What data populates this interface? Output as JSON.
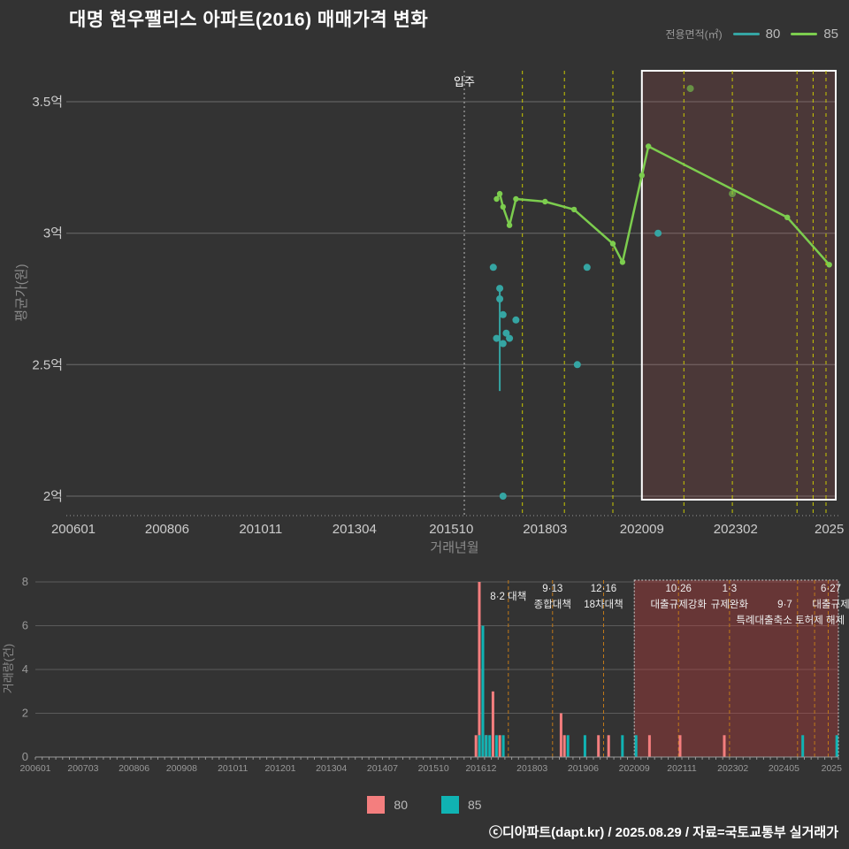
{
  "title": "대명 현우팰리스 아파트(2016) 매매가격 변화",
  "legend_top": {
    "label": "전용면적(㎡)",
    "items": [
      {
        "name": "80",
        "color": "#35a5a3"
      },
      {
        "name": "85",
        "color": "#7ccd4e"
      }
    ]
  },
  "legend_bottom": {
    "items": [
      {
        "name": "80",
        "color": "#f47e7e"
      },
      {
        "name": "85",
        "color": "#10b3b3"
      }
    ]
  },
  "footer": "ⓒ디아파트(dapt.kr) / 2025.08.29 / 자료=국토교통부 실거래가",
  "colors": {
    "background": "#333333",
    "price_80": "#35a5a3",
    "price_85": "#7ccd4e",
    "volume_80": "#f47e7e",
    "volume_85": "#10b3b3",
    "policy_line_top": "#c9c900",
    "policy_line_bottom": "#c07818",
    "highlight_border": "#ffffff"
  },
  "chart_data": [
    {
      "type": "line",
      "title": "매매가격 변화",
      "xlabel": "거래년월",
      "ylabel": "평균가(원)",
      "x_domain": [
        200601,
        202509
      ],
      "y_domain": [
        1.93,
        3.62
      ],
      "grid": true,
      "yticks": [
        {
          "v": 2.0,
          "label": "2억"
        },
        {
          "v": 2.5,
          "label": "2.5억"
        },
        {
          "v": 3.0,
          "label": "3억"
        },
        {
          "v": 3.5,
          "label": "3.5억"
        }
      ],
      "xticks": [
        {
          "m": 200601,
          "label": "200601"
        },
        {
          "m": 200806,
          "label": "200806"
        },
        {
          "m": 201011,
          "label": "201011"
        },
        {
          "m": 201304,
          "label": "201304"
        },
        {
          "m": 201510,
          "label": "201510"
        },
        {
          "m": 201803,
          "label": "201803"
        },
        {
          "m": 202009,
          "label": "202009"
        },
        {
          "m": 202302,
          "label": "202302"
        },
        {
          "m": 202507,
          "label": "2025"
        }
      ],
      "move_in": {
        "m": 201602,
        "label": "입주"
      },
      "highlight": {
        "from": 202009,
        "to": 202509
      },
      "series": [
        {
          "name": "80",
          "mode": "scatter",
          "color": "#35a5a3",
          "unit": "억",
          "points": [
            [
              201611,
              2.87
            ],
            [
              201612,
              2.6
            ],
            [
              201701,
              2.79
            ],
            [
              201701,
              2.75
            ],
            [
              201702,
              2.69
            ],
            [
              201702,
              2.58
            ],
            [
              201702,
              2.0
            ],
            [
              201703,
              2.62
            ],
            [
              201704,
              2.6
            ],
            [
              201706,
              2.67
            ],
            [
              201901,
              2.5
            ],
            [
              201904,
              2.87
            ],
            [
              202102,
              3.0
            ]
          ],
          "error_bar": {
            "m": 201701,
            "from": 2.4,
            "to": 2.78
          }
        },
        {
          "name": "85",
          "mode": "line",
          "color": "#7ccd4e",
          "unit": "억",
          "points": [
            [
              201612,
              3.13
            ],
            [
              201701,
              3.15
            ],
            [
              201702,
              3.1
            ],
            [
              201704,
              3.03
            ],
            [
              201706,
              3.13
            ],
            [
              201803,
              3.12
            ],
            [
              201812,
              3.09
            ],
            [
              201912,
              2.96
            ],
            [
              202003,
              2.89
            ],
            [
              202009,
              3.22
            ],
            [
              202011,
              3.33
            ],
            [
              202406,
              3.06
            ],
            [
              202507,
              2.88
            ]
          ],
          "outliers": [
            [
              202112,
              3.55
            ],
            [
              202301,
              3.15
            ]
          ]
        }
      ]
    },
    {
      "type": "bar",
      "title": "거래량",
      "xlabel": "",
      "ylabel": "거래량(건)",
      "x_domain": [
        200601,
        202509
      ],
      "y_domain": [
        0,
        8
      ],
      "grid": true,
      "yticks": [
        {
          "v": 0,
          "label": "0"
        },
        {
          "v": 2,
          "label": "2"
        },
        {
          "v": 4,
          "label": "4"
        },
        {
          "v": 6,
          "label": "6"
        },
        {
          "v": 8,
          "label": "8"
        }
      ],
      "xticks": [
        {
          "m": 200601,
          "label": "200601"
        },
        {
          "m": 200703,
          "label": "200703"
        },
        {
          "m": 200806,
          "label": "200806"
        },
        {
          "m": 200908,
          "label": "200908"
        },
        {
          "m": 201011,
          "label": "201011"
        },
        {
          "m": 201201,
          "label": "201201"
        },
        {
          "m": 201304,
          "label": "201304"
        },
        {
          "m": 201407,
          "label": "201407"
        },
        {
          "m": 201510,
          "label": "201510"
        },
        {
          "m": 201612,
          "label": "201612"
        },
        {
          "m": 201803,
          "label": "201803"
        },
        {
          "m": 201906,
          "label": "201906"
        },
        {
          "m": 202009,
          "label": "202009"
        },
        {
          "m": 202111,
          "label": "202111"
        },
        {
          "m": 202302,
          "label": "202302"
        },
        {
          "m": 202405,
          "label": "202405"
        },
        {
          "m": 202507,
          "label": "2025"
        }
      ],
      "highlight": {
        "from": 202009,
        "to": 202509
      },
      "series": [
        {
          "name": "80",
          "color": "#f47e7e",
          "points": [
            [
              201611,
              1
            ],
            [
              201612,
              8
            ],
            [
              201701,
              4
            ],
            [
              201702,
              1
            ],
            [
              201704,
              3
            ],
            [
              201706,
              1
            ],
            [
              201812,
              2
            ],
            [
              201901,
              1
            ],
            [
              201911,
              1
            ],
            [
              202002,
              1
            ],
            [
              202102,
              1
            ],
            [
              202111,
              1
            ],
            [
              202212,
              1
            ]
          ]
        },
        {
          "name": "85",
          "color": "#10b3b3",
          "points": [
            [
              201611,
              1
            ],
            [
              201612,
              6
            ],
            [
              201701,
              1
            ],
            [
              201702,
              1
            ],
            [
              201704,
              1
            ],
            [
              201706,
              1
            ],
            [
              201901,
              1
            ],
            [
              201906,
              1
            ],
            [
              202005,
              1
            ],
            [
              202009,
              1
            ],
            [
              202410,
              1
            ],
            [
              202508,
              1
            ]
          ]
        }
      ],
      "policies": [
        {
          "m": 201708,
          "rows": [
            [
              0.5,
              "8·2 대책"
            ]
          ],
          "anchor": "middle",
          "dx": 0
        },
        {
          "m": 201809,
          "rows": [
            [
              0,
              "9·13"
            ],
            [
              1,
              "종합대책"
            ]
          ],
          "anchor": "middle",
          "dx": 0
        },
        {
          "m": 201912,
          "rows": [
            [
              0,
              "12·16"
            ],
            [
              1,
              "18차대책"
            ]
          ],
          "anchor": "middle",
          "dx": 0
        },
        {
          "m": 202110,
          "rows": [
            [
              0,
              "10·26"
            ],
            [
              1,
              "대출규제강화"
            ]
          ],
          "anchor": "middle",
          "dx": 0
        },
        {
          "m": 202301,
          "rows": [
            [
              0,
              "1·3"
            ],
            [
              1,
              "규제완화"
            ]
          ],
          "anchor": "middle",
          "dx": 0
        },
        {
          "m": 202409,
          "rows": [
            [
              1,
              "9·7"
            ],
            [
              2,
              "특례대출축소"
            ]
          ],
          "anchor": "end",
          "dx": -6
        },
        {
          "m": 202502,
          "rows": [
            [
              2,
              "토허제 해제"
            ]
          ],
          "anchor": "start",
          "dx": -22
        },
        {
          "m": 202506,
          "rows": [
            [
              0,
              "6·27"
            ],
            [
              1,
              "대출규제"
            ]
          ],
          "anchor": "middle",
          "dx": 3
        }
      ]
    }
  ]
}
